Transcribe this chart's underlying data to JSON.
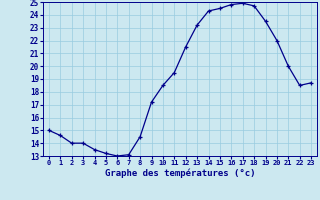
{
  "x": [
    0,
    1,
    2,
    3,
    4,
    5,
    6,
    7,
    8,
    9,
    10,
    11,
    12,
    13,
    14,
    15,
    16,
    17,
    18,
    19,
    20,
    21,
    22,
    23
  ],
  "temperatures": [
    15.0,
    14.6,
    14.0,
    14.0,
    13.5,
    13.2,
    13.0,
    13.1,
    14.5,
    17.2,
    18.5,
    19.5,
    21.5,
    23.2,
    24.3,
    24.5,
    24.8,
    24.9,
    24.7,
    23.5,
    22.0,
    20.0,
    18.5,
    18.7
  ],
  "ylim": [
    13,
    25
  ],
  "yticks": [
    13,
    14,
    15,
    16,
    17,
    18,
    19,
    20,
    21,
    22,
    23,
    24,
    25
  ],
  "line_color": "#00008B",
  "marker_color": "#00008B",
  "bg_color": "#cce8f0",
  "grid_color": "#99cce0",
  "xlabel": "Graphe des températures (°c)",
  "xlabel_color": "#00008B",
  "tick_color": "#00008B"
}
